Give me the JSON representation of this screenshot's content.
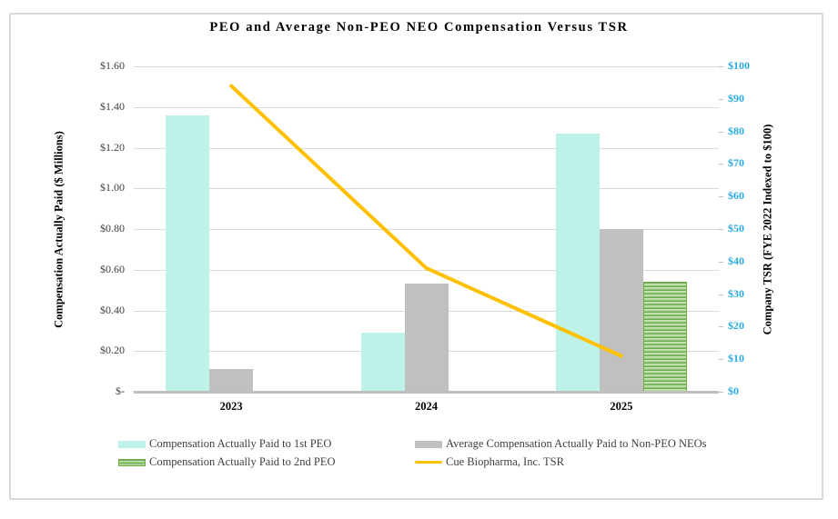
{
  "frame": {
    "border_color": "#D9D9D9",
    "background": "#FFFFFF"
  },
  "chart_data": {
    "type": "combo-bar-line",
    "title": "PEO and Average Non-PEO NEO Compensation Versus TSR",
    "categories": [
      "2023",
      "2024",
      "2025"
    ],
    "series": [
      {
        "name": "Compensation Actually Paid to 1st PEO",
        "type": "bar",
        "style": "cyan",
        "color": "#BEF2E9",
        "axis": "left",
        "values": [
          1.36,
          0.29,
          1.27
        ]
      },
      {
        "name": "Average Compensation Actually Paid to Non-PEO NEOs",
        "type": "bar",
        "style": "gray",
        "color": "#C0C0C0",
        "axis": "left",
        "values": [
          0.11,
          0.53,
          0.8
        ]
      },
      {
        "name": "Compensation Actually Paid to 2nd PEO",
        "type": "bar",
        "style": "green-striped",
        "color": "#70AD47",
        "axis": "left",
        "values": [
          null,
          null,
          0.54
        ]
      },
      {
        "name": "Cue Biopharma, Inc. TSR",
        "type": "line",
        "color": "#FFC000",
        "axis": "right",
        "values": [
          94,
          38,
          11
        ]
      }
    ],
    "left_axis": {
      "title": "Compensation Actually Paid ($ Millions)",
      "min": 0,
      "max": 1.6,
      "step": 0.2,
      "tick_labels": [
        "$-",
        "$0.20",
        "$0.40",
        "$0.60",
        "$0.80",
        "$1.00",
        "$1.20",
        "$1.40",
        "$1.60"
      ],
      "color": "#404040"
    },
    "right_axis": {
      "title": "Company TSR (FYE 2022 Indexed to $100)",
      "min": 0,
      "max": 100,
      "step": 10,
      "tick_labels": [
        "$0",
        "$10",
        "$20",
        "$30",
        "$40",
        "$50",
        "$60",
        "$70",
        "$80",
        "$90",
        "$100"
      ],
      "color": "#29A9DD"
    },
    "gridlines": true,
    "gridline_color": "#D9D9D9",
    "axis_line_color": "#BFBFBF",
    "legend_position": "bottom-two-columns",
    "legend": [
      {
        "label": "Compensation Actually Paid to 1st PEO",
        "swatch": "bar-cyan",
        "col": 0,
        "row": 0
      },
      {
        "label": "Average Compensation Actually Paid to Non-PEO NEOs",
        "swatch": "bar-gray",
        "col": 1,
        "row": 0
      },
      {
        "label": "Compensation Actually Paid to 2nd PEO",
        "swatch": "bar-green-striped",
        "col": 0,
        "row": 1
      },
      {
        "label": "Cue Biopharma, Inc. TSR",
        "swatch": "line-yellow",
        "col": 1,
        "row": 1
      }
    ]
  }
}
